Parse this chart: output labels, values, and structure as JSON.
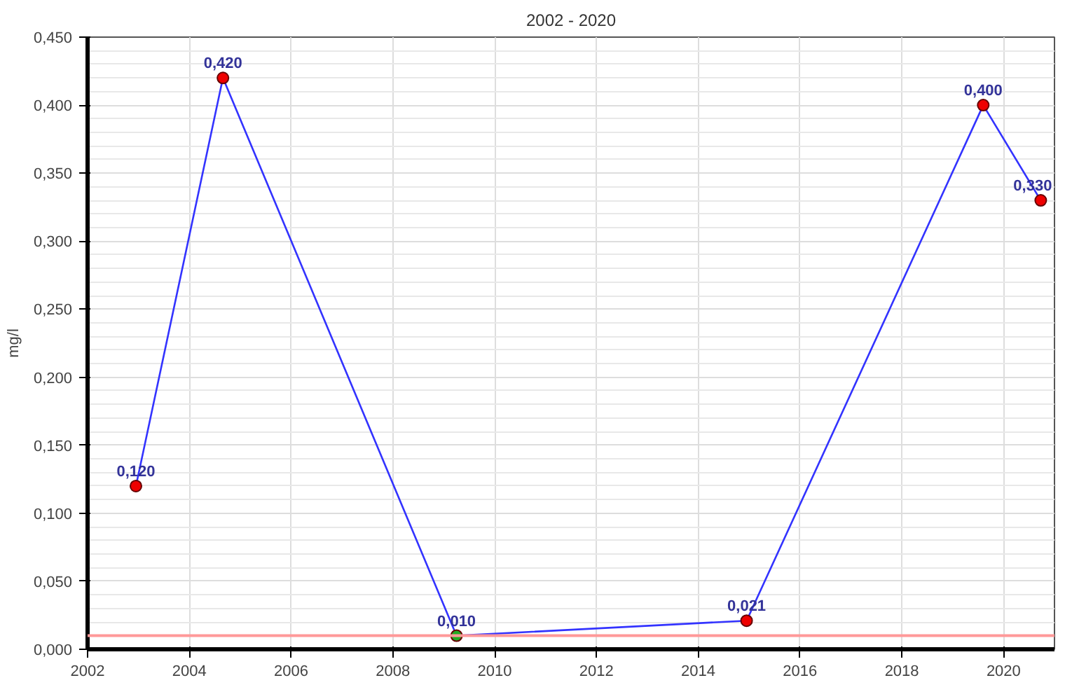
{
  "chart_data": {
    "type": "line",
    "title": "2002 - 2020",
    "ylabel": "mg/l",
    "x": [
      2002.95,
      2004.66,
      2009.25,
      2014.95,
      2019.6,
      2020.73
    ],
    "series": [
      {
        "color": "#3333ff",
        "values": [
          0.12,
          0.42,
          0.01,
          0.021,
          0.4,
          0.33
        ],
        "colors": [
          "#ee0000",
          "#ee0000",
          "#22aa22",
          "#ee0000",
          "#ee0000",
          "#ee0000"
        ],
        "value_labels": [
          "0,120",
          "0,420",
          "0,010",
          "0,021",
          "0,400",
          "0,330"
        ]
      }
    ],
    "marker": "circle",
    "xlim": [
      2002,
      2021
    ],
    "xticks": [
      2002,
      2004,
      2006,
      2008,
      2010,
      2012,
      2014,
      2016,
      2018,
      2020
    ],
    "ylim": [
      0,
      0.45
    ],
    "yticks": [
      {
        "value": 0,
        "label": "0,000"
      },
      {
        "value": 0.05,
        "label": "0,050"
      },
      {
        "value": 0.1,
        "label": "0,100"
      },
      {
        "value": 0.15,
        "label": "0,150"
      },
      {
        "value": 0.2,
        "label": "0,200"
      },
      {
        "value": 0.25,
        "label": "0,250"
      },
      {
        "value": 0.3,
        "label": "0,300"
      },
      {
        "value": 0.35,
        "label": "0,350"
      },
      {
        "value": 0.4,
        "label": "0,400"
      },
      {
        "value": 0.45,
        "label": "0,450"
      }
    ],
    "grid": true,
    "ref_lines": [
      {
        "axis": "y",
        "value": 0.01,
        "label": null,
        "color": "#ff9999"
      }
    ]
  }
}
